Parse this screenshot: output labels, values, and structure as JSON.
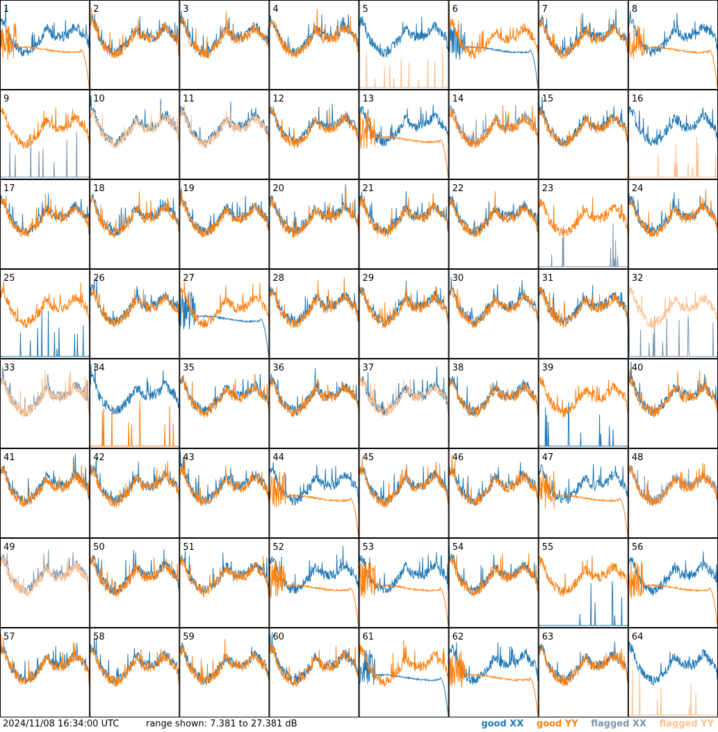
{
  "footer": {
    "timestamp": "2024/11/08 16:34:00 UTC",
    "range_text": "range shown: 7.381 to 27.381 dB"
  },
  "legend": {
    "good_xx": "good XX",
    "good_yy": "good YY",
    "flagged_xx": "flagged XX",
    "flagged_yy": "flagged YY"
  },
  "colors": {
    "good_xx": "#1f77b4",
    "good_yy": "#ff7f0e",
    "flagged_xx": "#7a94ae",
    "flagged_yy": "#ffbf8c"
  },
  "chart_data": {
    "type": "line",
    "title": "",
    "xlabel": "",
    "ylabel": "",
    "ylim": [
      7.381,
      27.381
    ],
    "grid": "8x8 panels",
    "panels": [
      {
        "id": 1,
        "xx": "good",
        "yy": "good",
        "xx_shape": "normal",
        "yy_shape": "flat_drop"
      },
      {
        "id": 2,
        "xx": "good",
        "yy": "good",
        "xx_shape": "normal",
        "yy_shape": "normal"
      },
      {
        "id": 3,
        "xx": "good",
        "yy": "good",
        "xx_shape": "normal",
        "yy_shape": "normal"
      },
      {
        "id": 4,
        "xx": "good",
        "yy": "good",
        "xx_shape": "normal",
        "yy_shape": "normal"
      },
      {
        "id": 5,
        "xx": "good",
        "yy": "flagged",
        "xx_shape": "normal",
        "yy_shape": "spikes"
      },
      {
        "id": 6,
        "xx": "good",
        "yy": "good",
        "xx_shape": "flat_drop",
        "yy_shape": "normal"
      },
      {
        "id": 7,
        "xx": "good",
        "yy": "good",
        "xx_shape": "normal",
        "yy_shape": "normal"
      },
      {
        "id": 8,
        "xx": "good",
        "yy": "good",
        "xx_shape": "normal",
        "yy_shape": "flat_drop"
      },
      {
        "id": 9,
        "xx": "flagged",
        "yy": "good",
        "xx_shape": "spikes",
        "yy_shape": "normal"
      },
      {
        "id": 10,
        "xx": "good",
        "yy": "flagged",
        "xx_shape": "normal",
        "yy_shape": "normal"
      },
      {
        "id": 11,
        "xx": "good",
        "yy": "flagged",
        "xx_shape": "normal",
        "yy_shape": "normal"
      },
      {
        "id": 12,
        "xx": "good",
        "yy": "good",
        "xx_shape": "normal",
        "yy_shape": "normal"
      },
      {
        "id": 13,
        "xx": "good",
        "yy": "good",
        "xx_shape": "normal",
        "yy_shape": "flat_drop"
      },
      {
        "id": 14,
        "xx": "flagged",
        "yy": "good",
        "xx_shape": "normal",
        "yy_shape": "normal"
      },
      {
        "id": 15,
        "xx": "good",
        "yy": "good",
        "xx_shape": "normal",
        "yy_shape": "normal"
      },
      {
        "id": 16,
        "xx": "good",
        "yy": "flagged",
        "xx_shape": "normal",
        "yy_shape": "spikes"
      },
      {
        "id": 17,
        "xx": "good",
        "yy": "good",
        "xx_shape": "normal",
        "yy_shape": "normal"
      },
      {
        "id": 18,
        "xx": "good",
        "yy": "good",
        "xx_shape": "normal",
        "yy_shape": "normal"
      },
      {
        "id": 19,
        "xx": "good",
        "yy": "good",
        "xx_shape": "normal",
        "yy_shape": "normal"
      },
      {
        "id": 20,
        "xx": "good",
        "yy": "good",
        "xx_shape": "normal",
        "yy_shape": "normal"
      },
      {
        "id": 21,
        "xx": "good",
        "yy": "good",
        "xx_shape": "normal",
        "yy_shape": "normal"
      },
      {
        "id": 22,
        "xx": "good",
        "yy": "good",
        "xx_shape": "normal",
        "yy_shape": "normal"
      },
      {
        "id": 23,
        "xx": "flagged",
        "yy": "good",
        "xx_shape": "spikes",
        "yy_shape": "normal"
      },
      {
        "id": 24,
        "xx": "good",
        "yy": "good",
        "xx_shape": "normal",
        "yy_shape": "normal"
      },
      {
        "id": 25,
        "xx": "good",
        "yy": "good",
        "xx_shape": "spikes",
        "yy_shape": "normal"
      },
      {
        "id": 26,
        "xx": "good",
        "yy": "good",
        "xx_shape": "normal",
        "yy_shape": "normal"
      },
      {
        "id": 27,
        "xx": "good",
        "yy": "good",
        "xx_shape": "flat_drop",
        "yy_shape": "normal"
      },
      {
        "id": 28,
        "xx": "good",
        "yy": "good",
        "xx_shape": "normal",
        "yy_shape": "normal"
      },
      {
        "id": 29,
        "xx": "good",
        "yy": "good",
        "xx_shape": "normal",
        "yy_shape": "normal"
      },
      {
        "id": 30,
        "xx": "good",
        "yy": "good",
        "xx_shape": "normal",
        "yy_shape": "normal"
      },
      {
        "id": 31,
        "xx": "good",
        "yy": "good",
        "xx_shape": "normal",
        "yy_shape": "normal"
      },
      {
        "id": 32,
        "xx": "flagged",
        "yy": "flagged",
        "xx_shape": "spikes",
        "yy_shape": "normal"
      },
      {
        "id": 33,
        "xx": "flagged",
        "yy": "flagged",
        "xx_shape": "normal",
        "yy_shape": "normal"
      },
      {
        "id": 34,
        "xx": "good",
        "yy": "good",
        "xx_shape": "normal",
        "yy_shape": "spikes"
      },
      {
        "id": 35,
        "xx": "good",
        "yy": "good",
        "xx_shape": "normal",
        "yy_shape": "normal"
      },
      {
        "id": 36,
        "xx": "good",
        "yy": "good",
        "xx_shape": "normal",
        "yy_shape": "normal"
      },
      {
        "id": 37,
        "xx": "good",
        "yy": "flagged",
        "xx_shape": "normal",
        "yy_shape": "normal"
      },
      {
        "id": 38,
        "xx": "good",
        "yy": "good",
        "xx_shape": "normal",
        "yy_shape": "normal"
      },
      {
        "id": 39,
        "xx": "good",
        "yy": "good",
        "xx_shape": "spikes",
        "yy_shape": "normal"
      },
      {
        "id": 40,
        "xx": "good",
        "yy": "good",
        "xx_shape": "normal",
        "yy_shape": "normal"
      },
      {
        "id": 41,
        "xx": "good",
        "yy": "good",
        "xx_shape": "normal",
        "yy_shape": "normal"
      },
      {
        "id": 42,
        "xx": "good",
        "yy": "good",
        "xx_shape": "normal",
        "yy_shape": "normal"
      },
      {
        "id": 43,
        "xx": "good",
        "yy": "good",
        "xx_shape": "normal",
        "yy_shape": "normal"
      },
      {
        "id": 44,
        "xx": "good",
        "yy": "good",
        "xx_shape": "normal",
        "yy_shape": "flat_drop"
      },
      {
        "id": 45,
        "xx": "good",
        "yy": "good",
        "xx_shape": "normal",
        "yy_shape": "normal"
      },
      {
        "id": 46,
        "xx": "good",
        "yy": "good",
        "xx_shape": "normal",
        "yy_shape": "normal"
      },
      {
        "id": 47,
        "xx": "good",
        "yy": "good",
        "xx_shape": "normal",
        "yy_shape": "flat_drop"
      },
      {
        "id": 48,
        "xx": "flagged",
        "yy": "good",
        "xx_shape": "normal",
        "yy_shape": "normal"
      },
      {
        "id": 49,
        "xx": "flagged",
        "yy": "flagged",
        "xx_shape": "normal",
        "yy_shape": "normal"
      },
      {
        "id": 50,
        "xx": "good",
        "yy": "good",
        "xx_shape": "normal",
        "yy_shape": "normal"
      },
      {
        "id": 51,
        "xx": "good",
        "yy": "good",
        "xx_shape": "normal",
        "yy_shape": "normal"
      },
      {
        "id": 52,
        "xx": "good",
        "yy": "good",
        "xx_shape": "normal",
        "yy_shape": "flat_drop"
      },
      {
        "id": 53,
        "xx": "good",
        "yy": "good",
        "xx_shape": "normal",
        "yy_shape": "flat_drop"
      },
      {
        "id": 54,
        "xx": "good",
        "yy": "good",
        "xx_shape": "normal",
        "yy_shape": "normal"
      },
      {
        "id": 55,
        "xx": "good",
        "yy": "good",
        "xx_shape": "spikes",
        "yy_shape": "normal"
      },
      {
        "id": 56,
        "xx": "good",
        "yy": "good",
        "xx_shape": "normal",
        "yy_shape": "flat_drop"
      },
      {
        "id": 57,
        "xx": "good",
        "yy": "good",
        "xx_shape": "normal",
        "yy_shape": "normal"
      },
      {
        "id": 58,
        "xx": "good",
        "yy": "good",
        "xx_shape": "normal",
        "yy_shape": "normal"
      },
      {
        "id": 59,
        "xx": "good",
        "yy": "good",
        "xx_shape": "normal",
        "yy_shape": "normal"
      },
      {
        "id": 60,
        "xx": "good",
        "yy": "good",
        "xx_shape": "normal",
        "yy_shape": "normal"
      },
      {
        "id": 61,
        "xx": "good",
        "yy": "good",
        "xx_shape": "flat_drop",
        "yy_shape": "normal"
      },
      {
        "id": 62,
        "xx": "good",
        "yy": "good",
        "xx_shape": "normal",
        "yy_shape": "flat_drop"
      },
      {
        "id": 63,
        "xx": "good",
        "yy": "good",
        "xx_shape": "normal",
        "yy_shape": "normal"
      },
      {
        "id": 64,
        "xx": "good",
        "yy": "flagged",
        "xx_shape": "normal",
        "yy_shape": "spikes"
      }
    ]
  }
}
